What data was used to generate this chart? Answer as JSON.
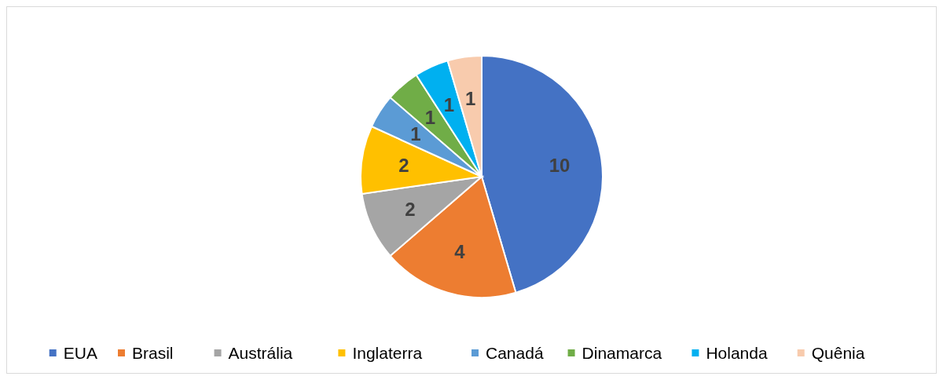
{
  "chart_data": {
    "type": "pie",
    "categories": [
      "EUA",
      "Brasil",
      "Austrália",
      "Inglaterra",
      "Canadá",
      "Dinamarca",
      "Holanda",
      "Quênia"
    ],
    "values": [
      10,
      4,
      2,
      2,
      1,
      1,
      1,
      1
    ],
    "colors": [
      "#4472c4",
      "#ed7d31",
      "#a5a5a5",
      "#ffc000",
      "#5b9bd5",
      "#70ad47",
      "#00b0f0",
      "#f8cbad"
    ],
    "data_labels": true,
    "legend": "bottom"
  }
}
